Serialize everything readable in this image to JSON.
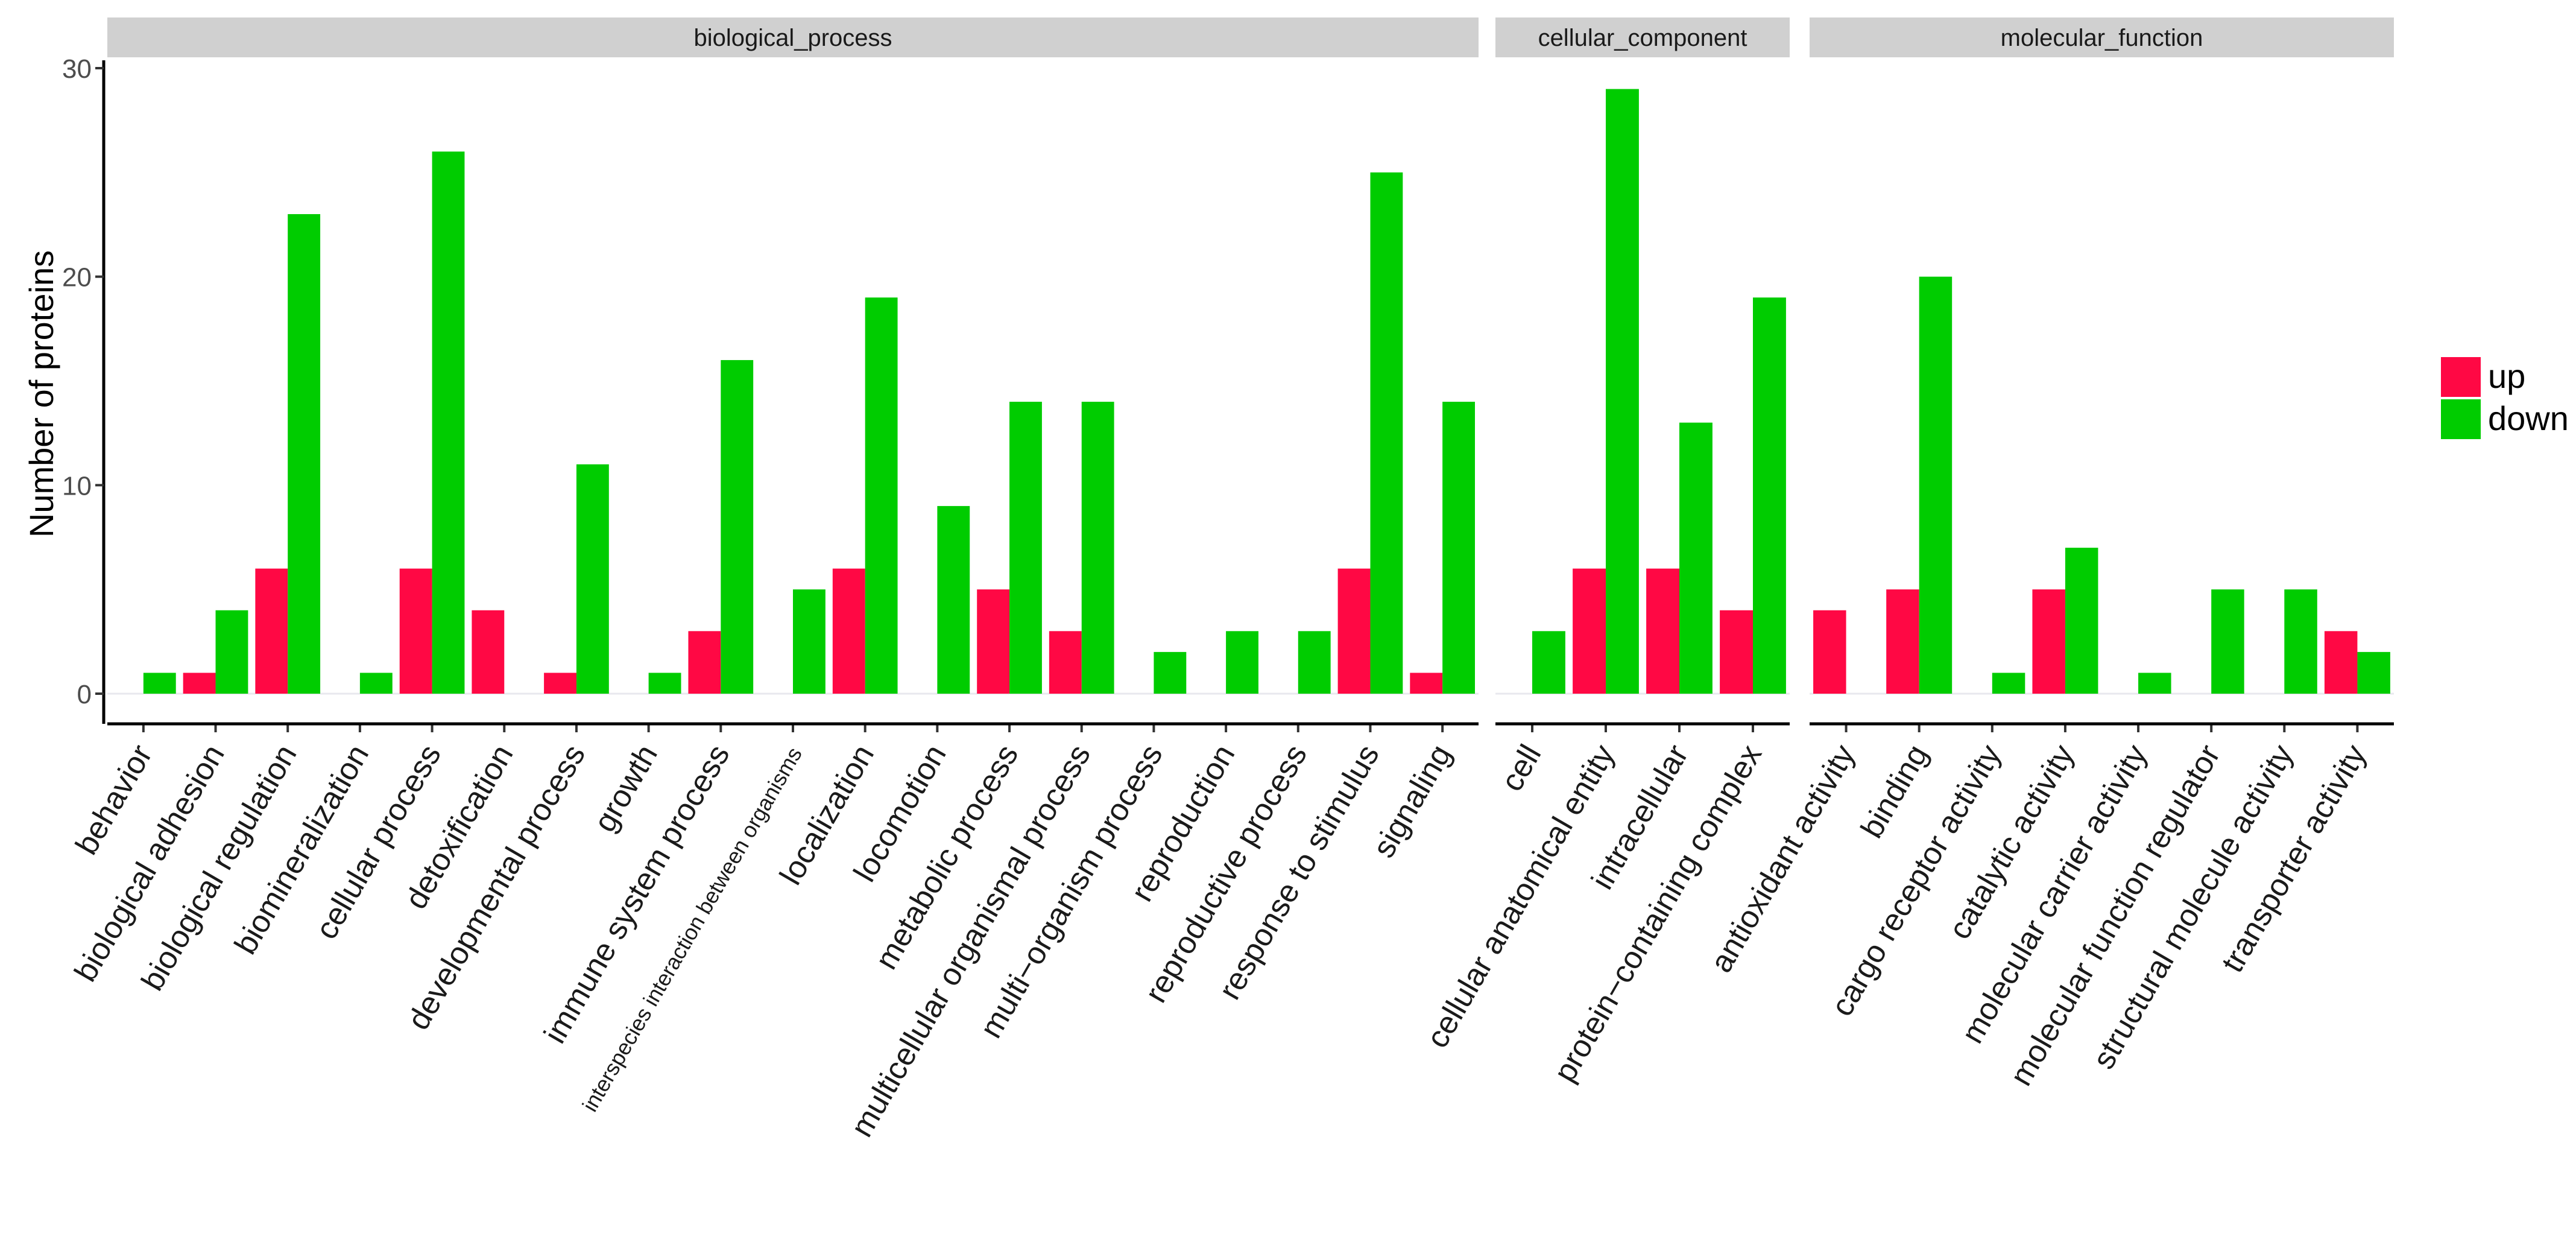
{
  "chart_data": {
    "type": "bar",
    "title": "",
    "xlabel": "",
    "ylabel": "Number of proteins",
    "ylim": [
      0,
      30
    ],
    "yticks": [
      0,
      10,
      20,
      30
    ],
    "legend": {
      "position": "right",
      "entries": [
        "up",
        "down"
      ]
    },
    "colors": {
      "up": "#ff0844",
      "down": "#00cc00"
    },
    "series_names": [
      "up",
      "down"
    ],
    "facets": [
      {
        "name": "biological_process",
        "categories": [
          "behavior",
          "biological adhesion",
          "biological regulation",
          "biomineralization",
          "cellular process",
          "detoxification",
          "developmental process",
          "growth",
          "immune system process",
          "interspecies interaction between organisms",
          "localization",
          "locomotion",
          "metabolic process",
          "multicellular organismal process",
          "multi−organism process",
          "reproduction",
          "reproductive process",
          "response to stimulus",
          "signaling"
        ],
        "up": [
          0,
          1,
          6,
          0,
          6,
          4,
          1,
          0,
          3,
          0,
          6,
          0,
          5,
          3,
          0,
          0,
          0,
          6,
          1
        ],
        "down": [
          1,
          4,
          23,
          1,
          26,
          0,
          11,
          1,
          16,
          5,
          19,
          9,
          14,
          14,
          2,
          3,
          3,
          25,
          14
        ]
      },
      {
        "name": "cellular_component",
        "categories": [
          "cell",
          "cellular anatomical entity",
          "intracellular",
          "protein−containing complex"
        ],
        "up": [
          0,
          6,
          6,
          4
        ],
        "down": [
          3,
          29,
          13,
          19
        ]
      },
      {
        "name": "molecular_function",
        "categories": [
          "antioxidant activity",
          "binding",
          "cargo receptor activity",
          "catalytic activity",
          "molecular carrier activity",
          "molecular function regulator",
          "structural molecule activity",
          "transporter activity"
        ],
        "up": [
          4,
          5,
          0,
          5,
          0,
          0,
          0,
          3
        ],
        "down": [
          0,
          20,
          1,
          7,
          1,
          5,
          5,
          2
        ]
      }
    ]
  }
}
